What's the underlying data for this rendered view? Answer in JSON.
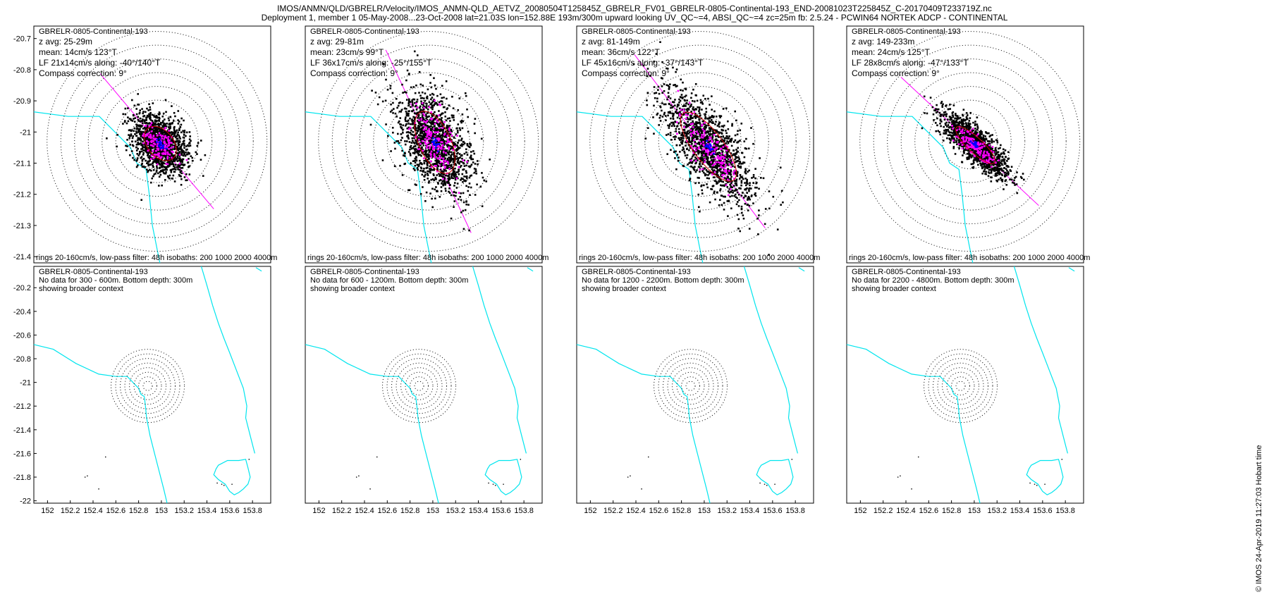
{
  "header": {
    "line1": "IMOS/ANMN/QLD/GBRELR/Velocity/IMOS_ANMN-QLD_AETVZ_20080504T125845Z_GBRELR_FV01_GBRELR-0805-Continental-193_END-20081023T225845Z_C-20170409T233719Z.nc",
    "line2": "Deployment 1, member 1 05-May-2008...23-Oct-2008 lat=21.03S lon=152.88E 193m/300m upward looking UV_QC~=4, ABSI_QC~=4 zc=25m fb: 2.5.24 - PCWIN64 NORTEK ADCP - CONTINENTAL"
  },
  "copyright": "© IMOS 24-Apr-2019 11:27:03 Hobart time",
  "colors": {
    "coast": "#00e5ee",
    "scatter": "#000000",
    "lowpass": "#ff00ff",
    "mean_core": "#0000ff",
    "axis_line": "#ff00ff",
    "ellipse": "#cc0000",
    "rings": "#000000"
  },
  "chart_data": [
    {
      "type": "scatter",
      "panel": "top",
      "title": "GBRELR-0805-Continental-193",
      "z_avg": "z avg: 25-29m",
      "mean": "mean: 14cm/s 123°T",
      "lf": "LF 21x14cm/s along: -40°/140°T",
      "compass": "Compass correction: 9°",
      "footer": "rings 20-160cm/s, low-pass filter: 48h isobaths: 200 1000 2000 4000m",
      "yticks": [
        "-20.7",
        "-20.8",
        "-20.9",
        "-21",
        "-21.1",
        "-21.2",
        "-21.3",
        "-21.4"
      ],
      "ylim": [
        -21.42,
        -20.66
      ],
      "grid": false,
      "axis_bearing_deg": 140,
      "mean_speed_cms": 14,
      "mean_dir_degT": 123,
      "lf_major_cms": 21,
      "lf_minor_cms": 14
    },
    {
      "type": "scatter",
      "panel": "top",
      "title": "GBRELR-0805-Continental-193",
      "z_avg": "z avg: 29-81m",
      "mean": "mean: 23cm/s 99°T",
      "lf": "LF 36x17cm/s along: -25°/155°T",
      "compass": "Compass correction: 9°",
      "footer": "rings 20-160cm/s, low-pass filter: 48h isobaths: 200 1000 2000 4000m",
      "axis_bearing_deg": 155,
      "mean_speed_cms": 23,
      "mean_dir_degT": 99,
      "lf_major_cms": 36,
      "lf_minor_cms": 17
    },
    {
      "type": "scatter",
      "panel": "top",
      "title": "GBRELR-0805-Continental-193",
      "z_avg": "z avg: 81-149m",
      "mean": "mean: 36cm/s 122°T",
      "lf": "LF 45x16cm/s along: -37°/143°T",
      "compass": "Compass correction: 9°",
      "footer": "rings 20-160cm/s, low-pass filter: 48h isobaths: 200 1000 2000 4000m",
      "axis_bearing_deg": 143,
      "mean_speed_cms": 36,
      "mean_dir_degT": 122,
      "lf_major_cms": 45,
      "lf_minor_cms": 16
    },
    {
      "type": "scatter",
      "panel": "top",
      "title": "GBRELR-0805-Continental-193",
      "z_avg": "z avg: 149-233m",
      "mean": "mean: 24cm/s 125°T",
      "lf": "LF 28x8cm/s along: -47°/133°T",
      "compass": "Compass correction: 9°",
      "footer": "rings 20-160cm/s, low-pass filter: 48h isobaths: 200 1000 2000 4000m",
      "axis_bearing_deg": 133,
      "mean_speed_cms": 24,
      "mean_dir_degT": 125,
      "lf_major_cms": 28,
      "lf_minor_cms": 8
    },
    {
      "type": "scatter",
      "panel": "bottom",
      "title": "GBRELR-0805-Continental-193",
      "nodata": "No data for 300 - 600m. Bottom depth: 300m",
      "context": "showing broader context",
      "xticks": [
        "152",
        "152.2",
        "152.4",
        "152.6",
        "152.8",
        "153",
        "153.2",
        "153.4",
        "153.6",
        "153.8"
      ],
      "yticks": [
        "-20.2",
        "-20.4",
        "-20.6",
        "-20.8",
        "-21",
        "-21.2",
        "-21.4",
        "-21.6",
        "-21.8",
        "-22"
      ],
      "xlim": [
        151.88,
        153.96
      ],
      "ylim": [
        -22.02,
        -20.02
      ]
    },
    {
      "type": "scatter",
      "panel": "bottom",
      "title": "GBRELR-0805-Continental-193",
      "nodata": "No data for 600 - 1200m. Bottom depth: 300m",
      "context": "showing broader context",
      "xticks": [
        "152",
        "152.2",
        "152.4",
        "152.6",
        "152.8",
        "153",
        "153.2",
        "153.4",
        "153.6",
        "153.8"
      ],
      "xlim": [
        151.88,
        153.96
      ],
      "ylim": [
        -22.02,
        -20.02
      ]
    },
    {
      "type": "scatter",
      "panel": "bottom",
      "title": "GBRELR-0805-Continental-193",
      "nodata": "No data for 1200 - 2200m. Bottom depth: 300m",
      "context": "showing broader context",
      "xticks": [
        "152",
        "152.2",
        "152.4",
        "152.6",
        "152.8",
        "153",
        "153.2",
        "153.4",
        "153.6",
        "153.8"
      ],
      "xlim": [
        151.88,
        153.96
      ],
      "ylim": [
        -22.02,
        -20.02
      ]
    },
    {
      "type": "scatter",
      "panel": "bottom",
      "title": "GBRELR-0805-Continental-193",
      "nodata": "No data for 2200 - 4800m. Bottom depth: 300m",
      "context": "showing broader context",
      "xticks": [
        "152",
        "152.2",
        "152.4",
        "152.6",
        "152.8",
        "153",
        "153.2",
        "153.4",
        "153.6",
        "153.8"
      ],
      "xlim": [
        151.88,
        153.96
      ],
      "ylim": [
        -22.02,
        -20.02
      ]
    }
  ]
}
